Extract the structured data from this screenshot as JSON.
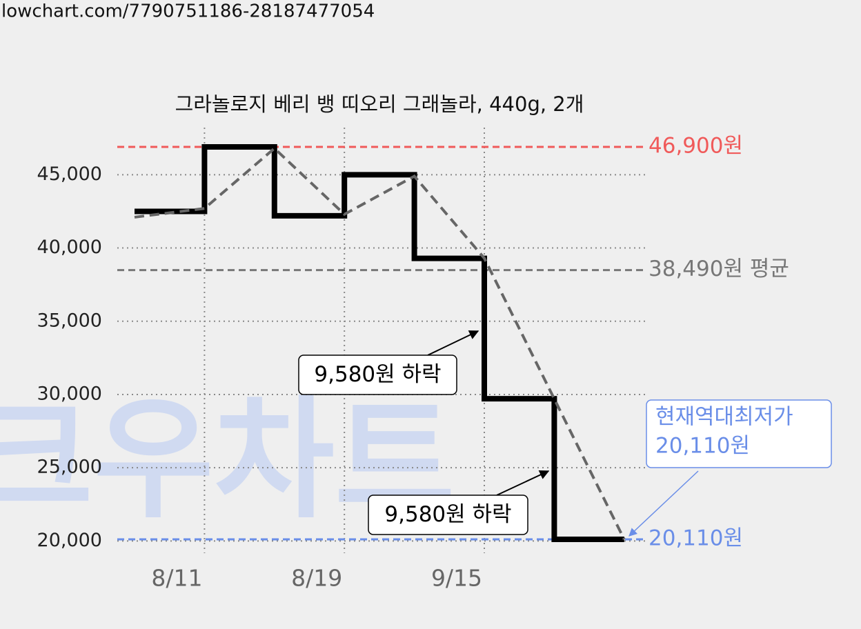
{
  "url": "lowchart.com/7790751186-28187477054",
  "watermark": "크우차트",
  "chart_data": {
    "type": "line",
    "step": true,
    "title": "그라놀로지 베리 뱅 띠오리 그래놀라, 440g, 2개",
    "categories": [
      null,
      "8/11",
      null,
      "8/19",
      null,
      "9/15",
      null,
      null
    ],
    "series": [
      {
        "color": "#000000",
        "values": [
          42500,
          46900,
          42200,
          45000,
          39290,
          29710,
          20110,
          20110
        ]
      },
      {
        "color": "#666666",
        "dashed": true,
        "values": [
          42100,
          42700,
          46800,
          42300,
          44900,
          39300,
          29700,
          20110
        ]
      }
    ],
    "ylim": [
      19500,
      48500
    ],
    "yticks": [
      {
        "value": 20000,
        "label": "20,000"
      },
      {
        "value": 25000,
        "label": "25,000"
      },
      {
        "value": 30000,
        "label": "30,000"
      },
      {
        "value": 35000,
        "label": "35,000"
      },
      {
        "value": 40000,
        "label": "40,000"
      },
      {
        "value": 45000,
        "label": "45,000"
      }
    ],
    "grid": true,
    "reference_lines": [
      {
        "value": 46900,
        "label": "46,900원",
        "color": "#f05a5a"
      },
      {
        "value": 38490,
        "label": "38,490원 평균",
        "color": "#777777"
      },
      {
        "value": 20110,
        "label": "20,110원",
        "color": "#6a8ee8"
      }
    ],
    "annotations": [
      "9,580원 하락",
      "9,580원 하락"
    ],
    "lowest_note": [
      "현재역대최저가",
      "20,110원"
    ]
  }
}
